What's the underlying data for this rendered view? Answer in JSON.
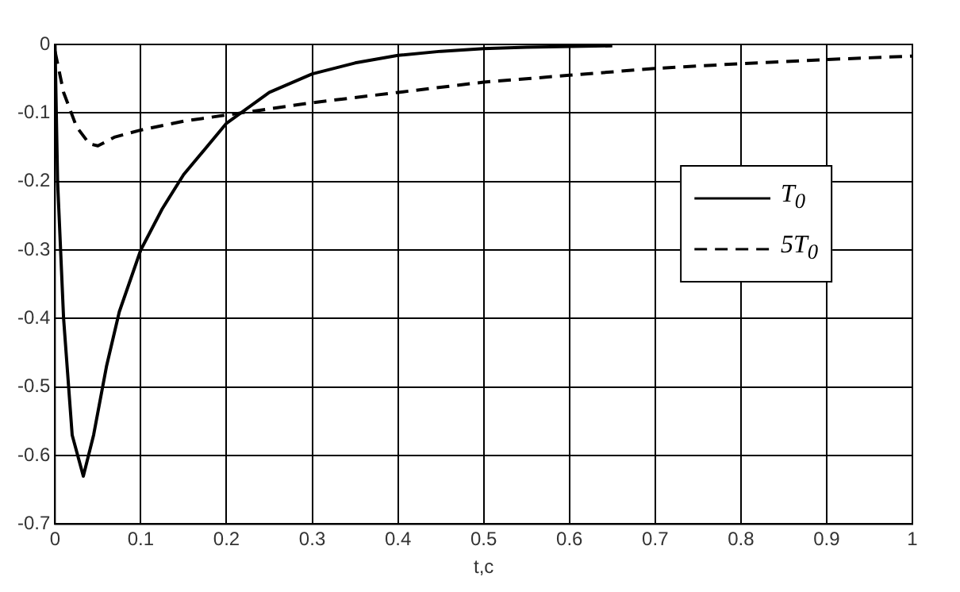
{
  "chart_data": {
    "type": "line",
    "xlabel": "t,c",
    "xlim": [
      0,
      1
    ],
    "xticks": [
      0,
      0.1,
      0.2,
      0.3,
      0.4,
      0.5,
      0.6,
      0.7,
      0.8,
      0.9,
      1
    ],
    "ylim": [
      -0.7,
      0
    ],
    "yticks": [
      -0.7,
      -0.6,
      -0.5,
      -0.4,
      -0.3,
      -0.2,
      -0.1,
      0
    ],
    "grid": true,
    "legend": "right",
    "marker": "none",
    "series": [
      {
        "name": "T$_{0}$",
        "color": "#000000",
        "line_style": "solid",
        "x": [
          0,
          0.003,
          0.01,
          0.02,
          0.033,
          0.045,
          0.06,
          0.075,
          0.1,
          0.125,
          0.15,
          0.2,
          0.25,
          0.3,
          0.35,
          0.4,
          0.45,
          0.5,
          0.55,
          0.65
        ],
        "values": [
          0,
          -0.2,
          -0.4,
          -0.57,
          -0.63,
          -0.57,
          -0.47,
          -0.39,
          -0.3,
          -0.24,
          -0.19,
          -0.115,
          -0.07,
          -0.043,
          -0.027,
          -0.016,
          -0.01,
          -0.006,
          -0.004,
          -0.002
        ]
      },
      {
        "name": "5T$_{0}$",
        "color": "#000000",
        "line_style": "dashed",
        "x": [
          0,
          0.01,
          0.025,
          0.04,
          0.05,
          0.07,
          0.1,
          0.15,
          0.2,
          0.3,
          0.4,
          0.5,
          0.6,
          0.7,
          0.8,
          0.9,
          1
        ],
        "values": [
          -0.01,
          -0.07,
          -0.12,
          -0.145,
          -0.148,
          -0.135,
          -0.125,
          -0.112,
          -0.103,
          -0.085,
          -0.07,
          -0.055,
          -0.045,
          -0.035,
          -0.028,
          -0.022,
          -0.017
        ]
      }
    ]
  }
}
